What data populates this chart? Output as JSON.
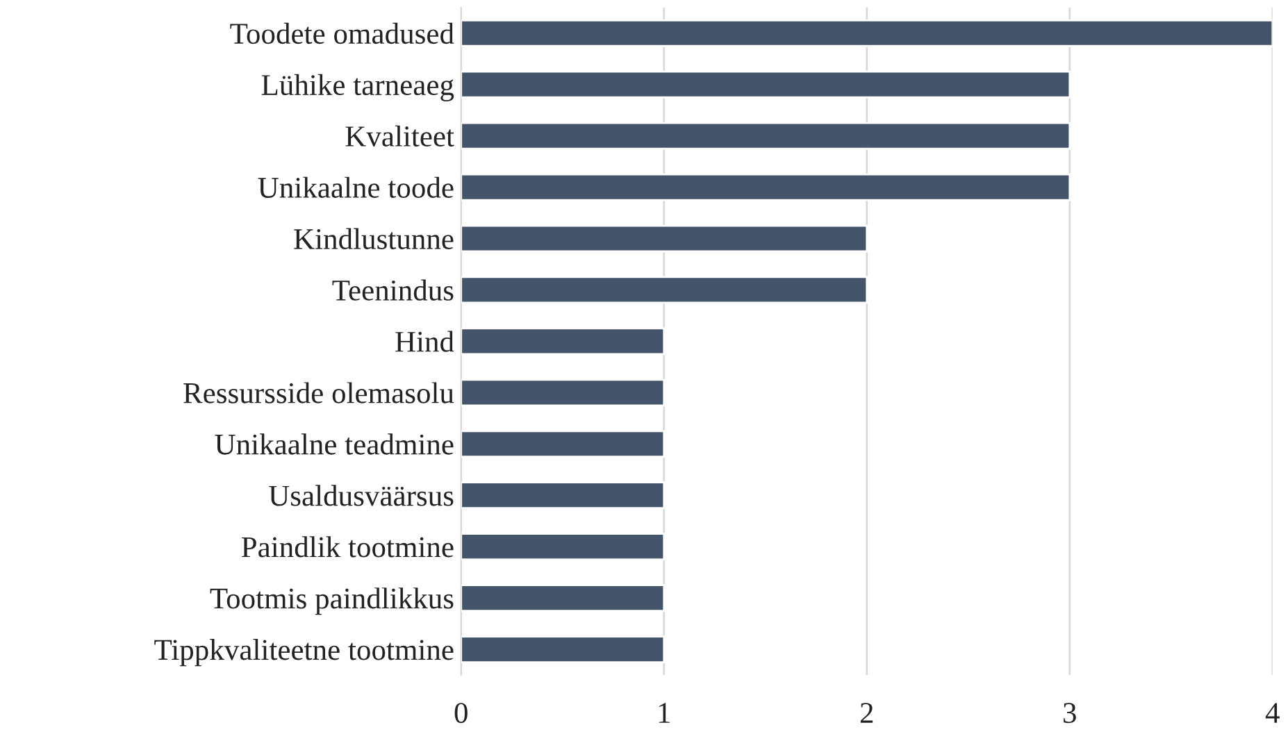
{
  "chart_data": {
    "type": "bar",
    "orientation": "horizontal",
    "categories": [
      "Toodete omadused",
      "Lühike tarneaeg",
      "Kvaliteet",
      "Unikaalne toode",
      "Kindlustunne",
      "Teenindus",
      "Hind",
      "Ressursside olemasolu",
      "Unikaalne teadmine",
      "Usaldusväärsus",
      "Paindlik tootmine",
      "Tootmis paindlikkus",
      "Tippkvaliteetne tootmine"
    ],
    "values": [
      4,
      3,
      3,
      3,
      2,
      2,
      1,
      1,
      1,
      1,
      1,
      1,
      1
    ],
    "color": "#44546a",
    "xlim": [
      0,
      4
    ],
    "xticks": [
      0,
      1,
      2,
      3,
      4
    ],
    "grid": "x"
  }
}
